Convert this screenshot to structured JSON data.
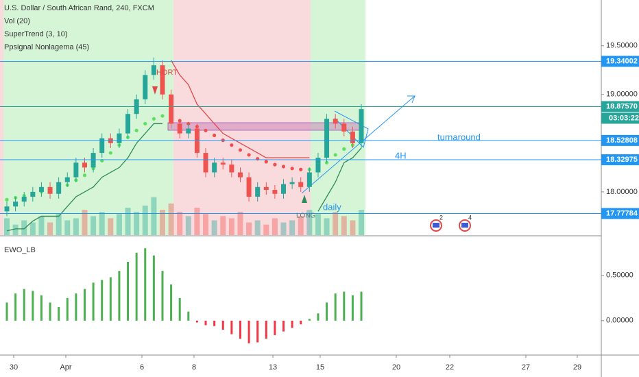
{
  "chart_data": [
    {
      "type": "candlestick",
      "title": "U.S. Dollar / South African Rand, 240, FXCM",
      "indicators": [
        "Vol (20)",
        "SuperTrend (3, 10)",
        "Ppsignal Nonlagema (45)"
      ],
      "open": [
        17.8,
        17.85,
        17.9,
        17.95,
        18.0,
        18.05,
        17.98,
        18.1,
        18.15,
        18.3,
        18.25,
        18.4,
        18.55,
        18.5,
        18.6,
        18.8,
        18.95,
        19.2,
        19.3,
        19.0,
        18.7,
        18.6,
        18.65,
        18.4,
        18.2,
        18.3,
        18.28,
        18.2,
        18.15,
        17.95,
        18.05,
        18.02,
        17.98,
        18.08,
        18.1,
        18.05,
        18.2,
        18.35,
        18.75,
        18.7,
        18.62,
        18.5
      ],
      "high": [
        17.9,
        17.95,
        18.0,
        18.05,
        18.1,
        18.1,
        18.15,
        18.2,
        18.35,
        18.35,
        18.45,
        18.6,
        18.6,
        18.65,
        18.85,
        19.0,
        19.25,
        19.38,
        19.35,
        19.05,
        18.75,
        18.7,
        18.7,
        18.45,
        18.35,
        18.35,
        18.33,
        18.25,
        18.2,
        18.1,
        18.1,
        18.07,
        18.13,
        18.15,
        18.15,
        18.25,
        18.4,
        18.8,
        18.8,
        18.75,
        18.67,
        18.9
      ],
      "low": [
        17.75,
        17.8,
        17.85,
        17.9,
        17.95,
        17.93,
        17.93,
        18.05,
        18.1,
        18.2,
        18.2,
        18.35,
        18.45,
        18.45,
        18.55,
        18.75,
        18.9,
        19.15,
        18.95,
        18.65,
        18.55,
        18.55,
        18.35,
        18.15,
        18.15,
        18.23,
        18.15,
        18.1,
        17.9,
        17.9,
        17.97,
        17.93,
        17.93,
        18.03,
        18.0,
        18.0,
        18.15,
        18.3,
        18.65,
        18.57,
        18.45,
        18.45
      ],
      "close": [
        17.85,
        17.9,
        17.95,
        18.0,
        18.05,
        17.98,
        18.1,
        18.15,
        18.3,
        18.25,
        18.4,
        18.55,
        18.5,
        18.6,
        18.8,
        18.95,
        19.2,
        19.3,
        19.0,
        18.7,
        18.6,
        18.65,
        18.4,
        18.2,
        18.3,
        18.28,
        18.2,
        18.15,
        17.95,
        18.05,
        18.02,
        17.98,
        18.08,
        18.1,
        18.05,
        18.2,
        18.35,
        18.75,
        18.7,
        18.62,
        18.5,
        18.85
      ],
      "volume": [
        40,
        25,
        35,
        30,
        45,
        30,
        50,
        35,
        40,
        60,
        45,
        55,
        40,
        50,
        65,
        55,
        70,
        90,
        60,
        75,
        55,
        45,
        65,
        50,
        35,
        45,
        40,
        55,
        30,
        35,
        25,
        40,
        30,
        35,
        45,
        60,
        50,
        40,
        55,
        45,
        35,
        60
      ],
      "volume_lim": [
        0,
        130
      ],
      "ema": [
        17.92,
        17.94,
        17.96,
        17.98,
        18.0,
        18.02,
        18.04,
        18.07,
        18.12,
        18.17,
        18.24,
        18.32,
        18.4,
        18.48,
        18.56,
        18.63,
        18.7,
        18.75,
        18.78,
        18.76,
        18.73,
        18.7,
        18.67,
        18.63,
        18.58,
        18.53,
        18.48,
        18.43,
        18.38,
        18.34,
        18.31,
        18.28,
        18.26,
        18.24,
        18.23,
        18.23,
        18.25,
        18.3,
        18.38,
        18.44,
        18.48,
        18.52
      ],
      "supertrend_up": [
        17.6,
        17.62,
        17.62,
        17.7,
        17.75,
        17.75,
        17.75,
        17.85,
        17.95,
        18.0,
        18.05,
        18.15,
        18.2,
        18.25,
        18.35,
        18.5,
        18.6,
        18.7,
        18.7,
        null,
        null,
        null,
        null,
        null,
        null,
        null,
        null,
        null,
        null,
        null,
        null,
        null,
        null,
        null,
        null,
        null,
        17.8,
        17.95,
        18.1,
        18.3,
        18.35,
        18.45
      ],
      "supertrend_down": [
        null,
        null,
        null,
        null,
        null,
        null,
        null,
        null,
        null,
        null,
        null,
        null,
        null,
        null,
        null,
        null,
        null,
        null,
        null,
        19.35,
        19.2,
        19.1,
        18.9,
        18.8,
        18.7,
        18.6,
        18.55,
        18.5,
        18.45,
        18.4,
        18.35,
        18.35,
        18.35,
        18.35,
        18.35,
        18.35,
        null,
        null,
        null,
        null,
        null,
        null
      ],
      "up_color": "#26a69a",
      "down_color": "#ef5350",
      "line_color": "#2196f3",
      "ylim": [
        17.556,
        19.97
      ],
      "yticks": [
        {
          "value": 19.5,
          "label": "19.50000"
        },
        {
          "value": 19,
          "label": "19.00000"
        },
        {
          "value": 18,
          "label": "18.00000"
        }
      ],
      "price_lines": [
        {
          "value": 19.34002,
          "label": "19.34002"
        },
        {
          "value": 18.8757,
          "label": "18.87570"
        },
        {
          "value": 18.52808,
          "label": "18.52808"
        },
        {
          "value": 18.32975,
          "label": "18.32975"
        },
        {
          "value": 17.77784,
          "label": "17.77784"
        }
      ],
      "countdown": "03:03:22",
      "annotations": [
        "HORT",
        "LONG",
        "turnaround",
        "4H",
        "daily"
      ],
      "date_labels": [
        "30",
        "Apr",
        "6",
        "8",
        "13",
        "15",
        "20",
        "22",
        "27",
        "29"
      ],
      "events": [
        "2",
        "4"
      ]
    },
    {
      "type": "bar",
      "title": "EWO_LB",
      "values": [
        0.2,
        0.3,
        0.35,
        0.33,
        0.28,
        0.2,
        0.15,
        0.25,
        0.3,
        0.35,
        0.42,
        0.45,
        0.48,
        0.55,
        0.65,
        0.75,
        0.8,
        0.72,
        0.55,
        0.4,
        0.25,
        0.1,
        -0.02,
        -0.05,
        -0.06,
        -0.1,
        -0.15,
        -0.2,
        -0.25,
        -0.24,
        -0.2,
        -0.16,
        -0.12,
        -0.08,
        -0.04,
        0.02,
        0.08,
        0.2,
        0.3,
        0.32,
        0.28,
        0.32
      ],
      "pos_color": "#4caf50",
      "neg_color": "#f23645",
      "ylim": [
        -0.38,
        0.93
      ],
      "yticks": [
        {
          "value": 0.5,
          "label": "0.50000"
        },
        {
          "value": 0,
          "label": "0.00000"
        }
      ]
    }
  ]
}
